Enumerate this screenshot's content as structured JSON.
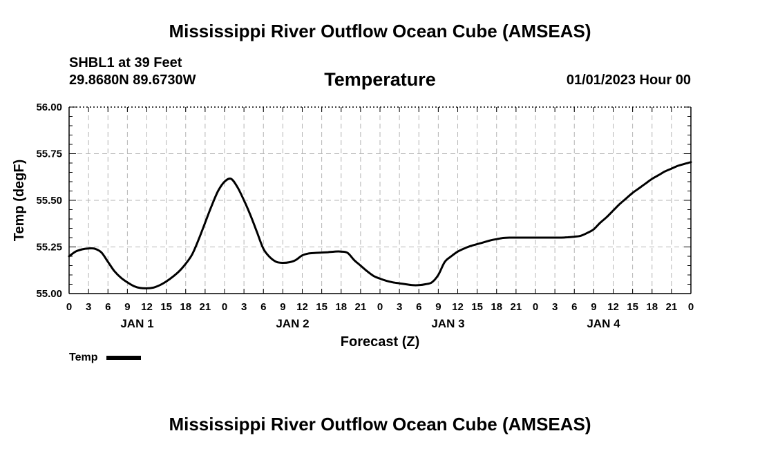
{
  "header": {
    "title": "Mississippi River Outflow Ocean Cube (AMSEAS)",
    "station": "SHBL1 at 39 Feet",
    "coords": "29.8680N  89.6730W",
    "subtitle": "Temperature",
    "datetime": "01/01/2023 Hour 00"
  },
  "footer": {
    "title": "Mississippi River Outflow Ocean Cube (AMSEAS)"
  },
  "legend": {
    "label": "Temp"
  },
  "chart_data": {
    "type": "line",
    "title": "Temperature",
    "xlabel": "Forecast (Z)",
    "ylabel": "Temp (degF)",
    "ylim": [
      55.0,
      56.0
    ],
    "xlim": [
      0,
      96
    ],
    "yticks": [
      "55.00",
      "55.25",
      "55.50",
      "55.75",
      "56.00"
    ],
    "xtick_labels": [
      "0",
      "3",
      "6",
      "9",
      "12",
      "15",
      "18",
      "21",
      "0",
      "3",
      "6",
      "9",
      "12",
      "15",
      "18",
      "21",
      "0",
      "3",
      "6",
      "9",
      "12",
      "15",
      "18",
      "21",
      "0",
      "3",
      "6",
      "9",
      "12",
      "15",
      "18",
      "21",
      "0"
    ],
    "day_labels": [
      {
        "label": "JAN 1",
        "center_hour": 10.5
      },
      {
        "label": "JAN 2",
        "center_hour": 34.5
      },
      {
        "label": "JAN 3",
        "center_hour": 58.5
      },
      {
        "label": "JAN 4",
        "center_hour": 82.5
      }
    ],
    "grid": true,
    "legend_position": "bottom-left",
    "series": [
      {
        "name": "Temp",
        "color": "#000000",
        "x": [
          0,
          1,
          2,
          3,
          4,
          5,
          6,
          7,
          8,
          9,
          10,
          11,
          12,
          13,
          14,
          15,
          16,
          17,
          18,
          19,
          20,
          21,
          22,
          23,
          24,
          25,
          26,
          27,
          28,
          29,
          30,
          31,
          32,
          33,
          34,
          35,
          36,
          37,
          38,
          39,
          40,
          41,
          42,
          43,
          44,
          45,
          46,
          47,
          48,
          49,
          50,
          51,
          52,
          53,
          54,
          55,
          56,
          57,
          58,
          59,
          60,
          61,
          62,
          63,
          64,
          65,
          66,
          67,
          68,
          69,
          70,
          71,
          72,
          73,
          74,
          75,
          76,
          77,
          78,
          79,
          80,
          81,
          82,
          83,
          84,
          85,
          86,
          87,
          88,
          89,
          90,
          91,
          92,
          93,
          94,
          95,
          96
        ],
        "values": [
          55.2,
          55.225,
          55.237,
          55.242,
          55.24,
          55.22,
          55.17,
          55.12,
          55.085,
          55.06,
          55.04,
          55.03,
          55.028,
          55.032,
          55.045,
          55.065,
          55.09,
          55.12,
          55.16,
          55.21,
          55.29,
          55.38,
          55.47,
          55.55,
          55.6,
          55.615,
          55.57,
          55.5,
          55.42,
          55.33,
          55.24,
          55.195,
          55.17,
          55.165,
          55.168,
          55.18,
          55.205,
          55.215,
          55.218,
          55.22,
          55.222,
          55.225,
          55.225,
          55.218,
          55.18,
          55.15,
          55.12,
          55.095,
          55.08,
          55.068,
          55.06,
          55.055,
          55.05,
          55.045,
          55.045,
          55.05,
          55.06,
          55.1,
          55.17,
          55.2,
          55.225,
          55.242,
          55.255,
          55.265,
          55.275,
          55.285,
          55.292,
          55.298,
          55.3,
          55.3,
          55.3,
          55.3,
          55.3,
          55.3,
          55.3,
          55.3,
          55.3,
          55.302,
          55.305,
          55.31,
          55.325,
          55.345,
          55.38,
          55.41,
          55.445,
          55.48,
          55.51,
          55.54,
          55.565,
          55.59,
          55.615,
          55.635,
          55.655,
          55.67,
          55.685,
          55.695,
          55.705
        ]
      }
    ]
  }
}
